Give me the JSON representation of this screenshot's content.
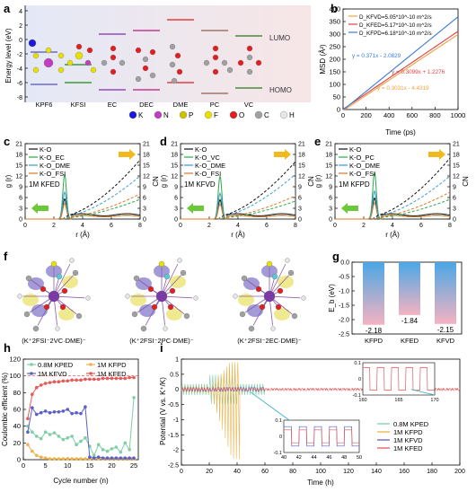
{
  "panel_letters": [
    "a",
    "b",
    "c",
    "d",
    "e",
    "f",
    "g",
    "h",
    "i"
  ],
  "panel_a": {
    "ylabel": "Energy level (eV)",
    "yticks": [
      "4",
      "2",
      "0",
      "-2",
      "-4",
      "-6",
      "-8"
    ],
    "lumo_label": "LUMO",
    "homo_label": "HOMO",
    "molecules": [
      "KPF6",
      "KFSI",
      "EC",
      "DEC",
      "DME",
      "PC",
      "VC"
    ],
    "legend": [
      {
        "symbol": "K",
        "color": "#1a1adb"
      },
      {
        "symbol": "N",
        "color": "#c23cc2"
      },
      {
        "symbol": "P",
        "color": "#d0c000"
      },
      {
        "symbol": "F",
        "color": "#e8e000"
      },
      {
        "symbol": "O",
        "color": "#e02020"
      },
      {
        "symbol": "C",
        "color": "#a0a0a0"
      },
      {
        "symbol": "H",
        "color": "#e6e6e6"
      }
    ],
    "bg_left": "#e4e8f6",
    "bg_right": "#f7e6e6"
  },
  "panel_f": {
    "captions": [
      "(K⁺2FSI⁻2VC·DME)⁻",
      "(K⁺2FSI⁻2PC·DME)⁻",
      "(K⁺2FSI⁻2EC·DME)⁻"
    ]
  },
  "chart_data": [
    {
      "panel": "b",
      "type": "line",
      "xlabel": "Time (ps)",
      "ylabel": "MSD (Å²)",
      "xlim": [
        0,
        1000
      ],
      "ylim": [
        0,
        400
      ],
      "xticks": [
        0,
        200,
        400,
        600,
        800,
        1000
      ],
      "yticks": [
        0,
        50,
        100,
        150,
        200,
        250,
        300,
        350,
        400
      ],
      "legend": [
        {
          "text": "D_KFVD=5.05*10^-10 m^2/s",
          "color": "#f0a040"
        },
        {
          "text": "D_KFED=5.17*10^-10 m^2/s",
          "color": "#e04040"
        },
        {
          "text": "D_KFPD=6.18*10^-10 m^2/s",
          "color": "#3a7ad8"
        }
      ],
      "series": [
        {
          "name": "KFVD",
          "color": "#f0a040",
          "slope": 0.3031,
          "intercept": -4.4319,
          "fit": "y = 0.3031x - 4.4319"
        },
        {
          "name": "KFED",
          "color": "#e04040",
          "slope": 0.3099,
          "intercept": 1.2276,
          "fit": "y = 0.3099x + 1.2276"
        },
        {
          "name": "KFPD",
          "color": "#3a7ad8",
          "slope": 0.371,
          "intercept": -2.0829,
          "fit": "y = 0.371x - 2.0829"
        }
      ]
    },
    {
      "panel": "c",
      "type": "line",
      "xlabel": "r (Å)",
      "ylabel": "g (r)",
      "y2label": "CN",
      "xlim": [
        0,
        8
      ],
      "ylim": [
        0,
        21
      ],
      "xticks": [
        0,
        2,
        4,
        6,
        8
      ],
      "yticks": [
        0,
        3,
        6,
        9,
        12,
        15,
        18,
        21
      ],
      "label": "1M KFED",
      "legend": [
        {
          "text": "K-O",
          "color": "#111111"
        },
        {
          "text": "K-O_EC",
          "color": "#2aa84a"
        },
        {
          "text": "K-O_DME",
          "color": "#3a9ad8"
        },
        {
          "text": "K-O_FSI",
          "color": "#e07820"
        }
      ],
      "peak_height": 12.5,
      "cn_end": [
        16.5,
        5.5,
        12.0,
        7.0
      ]
    },
    {
      "panel": "d",
      "type": "line",
      "xlabel": "r (Å)",
      "ylabel": "g (r)",
      "y2label": "CN",
      "xlim": [
        0,
        8
      ],
      "ylim": [
        0,
        21
      ],
      "xticks": [
        0,
        2,
        4,
        6,
        8
      ],
      "yticks": [
        0,
        3,
        6,
        9,
        12,
        15,
        18,
        21
      ],
      "label": "1M KFVD",
      "legend": [
        {
          "text": "K-O",
          "color": "#111111"
        },
        {
          "text": "K-O_VC",
          "color": "#2aa84a"
        },
        {
          "text": "K-O_DME",
          "color": "#3a9ad8"
        },
        {
          "text": "K-O_FSI",
          "color": "#e07820"
        }
      ],
      "peak_height": 12.0,
      "cn_end": [
        16.0,
        5.0,
        12.5,
        6.5
      ]
    },
    {
      "panel": "e",
      "type": "line",
      "xlabel": "r (Å)",
      "ylabel": "g (r)",
      "y2label": "CN",
      "xlim": [
        0,
        8
      ],
      "ylim": [
        0,
        21
      ],
      "xticks": [
        0,
        2,
        4,
        6,
        8
      ],
      "yticks": [
        0,
        3,
        6,
        9,
        12,
        15,
        18,
        21
      ],
      "label": "1M KFPD",
      "legend": [
        {
          "text": "K-O",
          "color": "#111111"
        },
        {
          "text": "K-O_PC",
          "color": "#2aa84a"
        },
        {
          "text": "K-O_DME",
          "color": "#3a9ad8"
        },
        {
          "text": "K-O_FSI",
          "color": "#e07820"
        }
      ],
      "peak_height": 13.0,
      "cn_end": [
        17.0,
        5.5,
        12.0,
        7.5
      ]
    },
    {
      "panel": "g",
      "type": "bar",
      "ylabel": "E_b (eV)",
      "categories": [
        "KFPD",
        "KFED",
        "KFVD"
      ],
      "values": [
        -2.18,
        -1.84,
        -2.15
      ],
      "value_labels": [
        "-2.18",
        "-1.84",
        "-2.15"
      ],
      "ylim": [
        0,
        -2.5
      ],
      "yticks": [
        0.0,
        -0.5,
        -1.0,
        -1.5,
        -2.0,
        -2.5
      ],
      "bar_top_color": "#4ba7e6",
      "bar_bottom_color": "#f5b3c0"
    },
    {
      "panel": "h",
      "type": "line",
      "xlabel": "Cycle number (n)",
      "ylabel": "Coulombic efficient (%)",
      "xlim": [
        0,
        26
      ],
      "ylim": [
        0,
        120
      ],
      "xticks": [
        0,
        5,
        10,
        15,
        20,
        25
      ],
      "yticks": [
        0,
        20,
        40,
        60,
        80,
        100,
        120
      ],
      "series": [
        {
          "name": "0.8M KPED",
          "color": "#7fcfa5",
          "x": [
            1,
            2,
            3,
            4,
            5,
            6,
            7,
            8,
            9,
            10,
            11,
            12,
            13,
            14,
            15,
            16,
            17,
            18,
            19,
            20,
            21,
            22,
            23,
            24,
            25
          ],
          "y": [
            40,
            33,
            28,
            25,
            33,
            30,
            32,
            28,
            24,
            26,
            28,
            18,
            22,
            26,
            16,
            5,
            18,
            12,
            10,
            13,
            15,
            9,
            20,
            12,
            74
          ]
        },
        {
          "name": "1M KFPD",
          "color": "#f0b24a",
          "x": [
            1,
            2,
            3,
            4,
            5,
            6,
            7,
            8,
            9,
            10,
            11,
            12,
            13,
            14,
            15,
            16,
            17,
            18,
            19,
            20,
            21,
            22,
            23,
            24,
            25
          ],
          "y": [
            18,
            10,
            5,
            3,
            2,
            1,
            1,
            1,
            1,
            1,
            1,
            1,
            1,
            1,
            1,
            1,
            1,
            1,
            1,
            1,
            1,
            1,
            1,
            1,
            1
          ]
        },
        {
          "name": "1M KFVD",
          "color": "#5b5fc6",
          "x": [
            1,
            2,
            3,
            4,
            5,
            6,
            7,
            8,
            9,
            10,
            11,
            12,
            13,
            14,
            15,
            16,
            17,
            18,
            19,
            20,
            21,
            22,
            23,
            24,
            25
          ],
          "y": [
            33,
            62,
            54,
            56,
            58,
            56,
            57,
            57,
            58,
            60,
            55,
            56,
            55,
            63,
            3,
            2,
            3,
            2,
            2,
            2,
            2,
            2,
            2,
            2,
            2
          ]
        },
        {
          "name": "1M KFED",
          "color": "#e65a5a",
          "x": [
            1,
            2,
            3,
            4,
            5,
            6,
            7,
            8,
            9,
            10,
            11,
            12,
            13,
            14,
            15,
            16,
            17,
            18,
            19,
            20,
            21,
            22,
            23,
            24,
            25
          ],
          "y": [
            49,
            78,
            86,
            89,
            91,
            92,
            93,
            93,
            94,
            94,
            95,
            95,
            95,
            96,
            96,
            96,
            96,
            97,
            97,
            97,
            97,
            97,
            97,
            98,
            98
          ]
        }
      ],
      "reference_line": 100
    },
    {
      "panel": "i",
      "type": "line",
      "xlabel": "Time (h)",
      "ylabel": "Potential (V vs. K⁺/K)",
      "xlim": [
        0,
        200
      ],
      "ylim": [
        -2.5,
        1.0
      ],
      "xticks": [
        0,
        20,
        40,
        60,
        80,
        100,
        120,
        140,
        160,
        180,
        200
      ],
      "yticks": [
        1.0,
        0.5,
        0.0,
        -0.5,
        -1.0,
        -1.5,
        -2.0,
        -2.5
      ],
      "series": [
        {
          "name": "0.8M KPED",
          "color": "#7fcfa5"
        },
        {
          "name": "1M KFPD",
          "color": "#f0b24a"
        },
        {
          "name": "1M KFVD",
          "color": "#5b5fc6"
        },
        {
          "name": "1M KFED",
          "color": "#e65a5a"
        }
      ],
      "inset_top": {
        "xlim": [
          160,
          170
        ],
        "ylim": [
          -0.1,
          0.1
        ],
        "xticks": [
          160,
          165,
          170
        ],
        "yticks": [
          0.1,
          0.0,
          -0.1
        ]
      },
      "inset_bottom": {
        "xlim": [
          40,
          50
        ],
        "ylim": [
          -0.1,
          0.1
        ],
        "xticks": [
          40,
          42,
          44,
          46,
          48,
          50
        ],
        "yticks": [
          0.1,
          0.0,
          -0.1
        ]
      }
    }
  ]
}
